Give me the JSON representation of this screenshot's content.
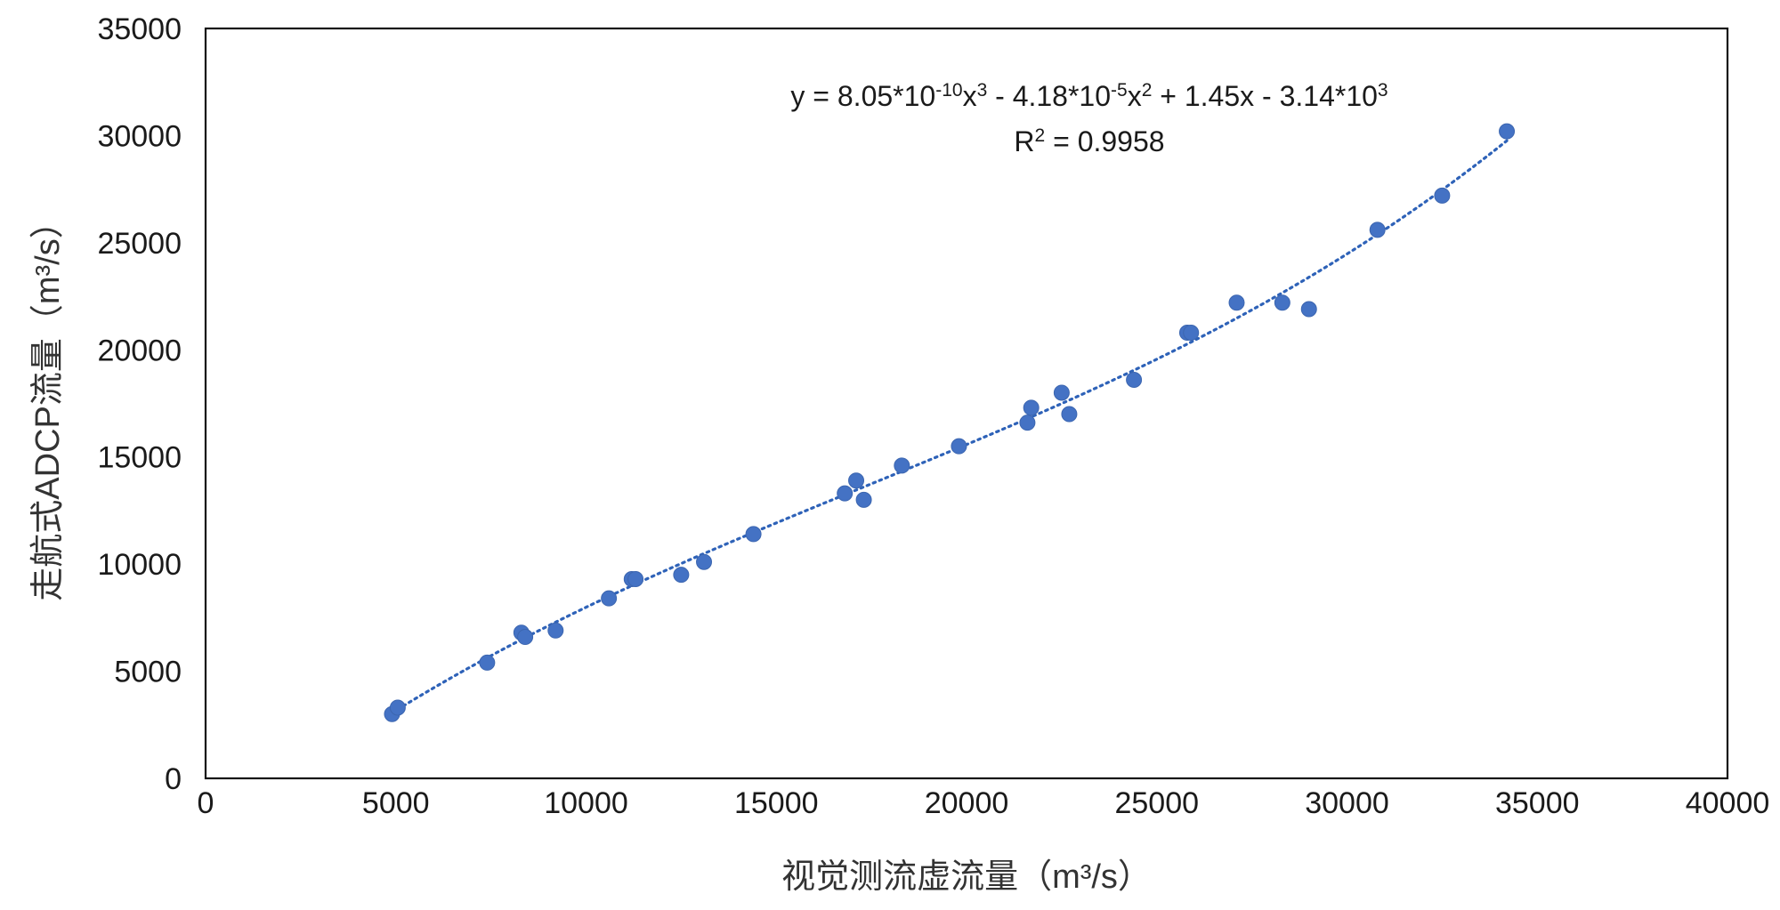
{
  "chart_data": {
    "type": "scatter",
    "xlabel": "视觉测流虚流量（m³/s）",
    "ylabel": "走航式ADCP流量（m³/s）",
    "xlim": [
      0,
      40000
    ],
    "ylim": [
      0,
      35000
    ],
    "x_ticks": [
      0,
      5000,
      10000,
      15000,
      20000,
      25000,
      30000,
      35000,
      40000
    ],
    "y_ticks": [
      0,
      5000,
      10000,
      15000,
      20000,
      25000,
      30000,
      35000
    ],
    "x_tick_labels": [
      "0",
      "5000",
      "10000",
      "15000",
      "20000",
      "25000",
      "30000",
      "35000",
      "40000"
    ],
    "y_tick_labels": [
      "0",
      "5000",
      "10000",
      "15000",
      "20000",
      "25000",
      "30000",
      "35000"
    ],
    "grid": false,
    "legend": "none",
    "series": [
      {
        "marker_color": "#4472C4",
        "points": [
          [
            4900,
            3000
          ],
          [
            5050,
            3300
          ],
          [
            7400,
            5400
          ],
          [
            8300,
            6800
          ],
          [
            8400,
            6600
          ],
          [
            9200,
            6900
          ],
          [
            10600,
            8400
          ],
          [
            11200,
            9300
          ],
          [
            11300,
            9300
          ],
          [
            12500,
            9500
          ],
          [
            13100,
            10100
          ],
          [
            14400,
            11400
          ],
          [
            16800,
            13300
          ],
          [
            17100,
            13900
          ],
          [
            17300,
            13000
          ],
          [
            18300,
            14600
          ],
          [
            19800,
            15500
          ],
          [
            21600,
            16600
          ],
          [
            21700,
            17300
          ],
          [
            22500,
            18000
          ],
          [
            22700,
            17000
          ],
          [
            24400,
            18600
          ],
          [
            25800,
            20800
          ],
          [
            25900,
            20800
          ],
          [
            27100,
            22200
          ],
          [
            28300,
            22200
          ],
          [
            29000,
            21900
          ],
          [
            30800,
            25600
          ],
          [
            32500,
            27200
          ],
          [
            34200,
            30200
          ]
        ]
      }
    ],
    "trendline": {
      "type": "polynomial",
      "order": 3,
      "coefficients": [
        8.05e-10,
        -4.18e-05,
        1.45,
        -3140
      ],
      "x_range": [
        4900,
        34200
      ],
      "color": "#2E62B8",
      "style": "dotted"
    },
    "annotation": {
      "equation_parts": [
        {
          "text": "y = 8.05*10",
          "sup": false
        },
        {
          "text": "-10",
          "sup": true
        },
        {
          "text": "x",
          "sup": false
        },
        {
          "text": "3",
          "sup": true
        },
        {
          "text": " - 4.18*10",
          "sup": false
        },
        {
          "text": "-5",
          "sup": true
        },
        {
          "text": "x",
          "sup": false
        },
        {
          "text": "2",
          "sup": true
        },
        {
          "text": " + 1.45x - 3.14*10",
          "sup": false
        },
        {
          "text": "3",
          "sup": true
        }
      ],
      "r2_parts": [
        {
          "text": "R",
          "sup": false
        },
        {
          "text": "2",
          "sup": true
        },
        {
          "text": " = 0.9958",
          "sup": false
        }
      ]
    }
  }
}
